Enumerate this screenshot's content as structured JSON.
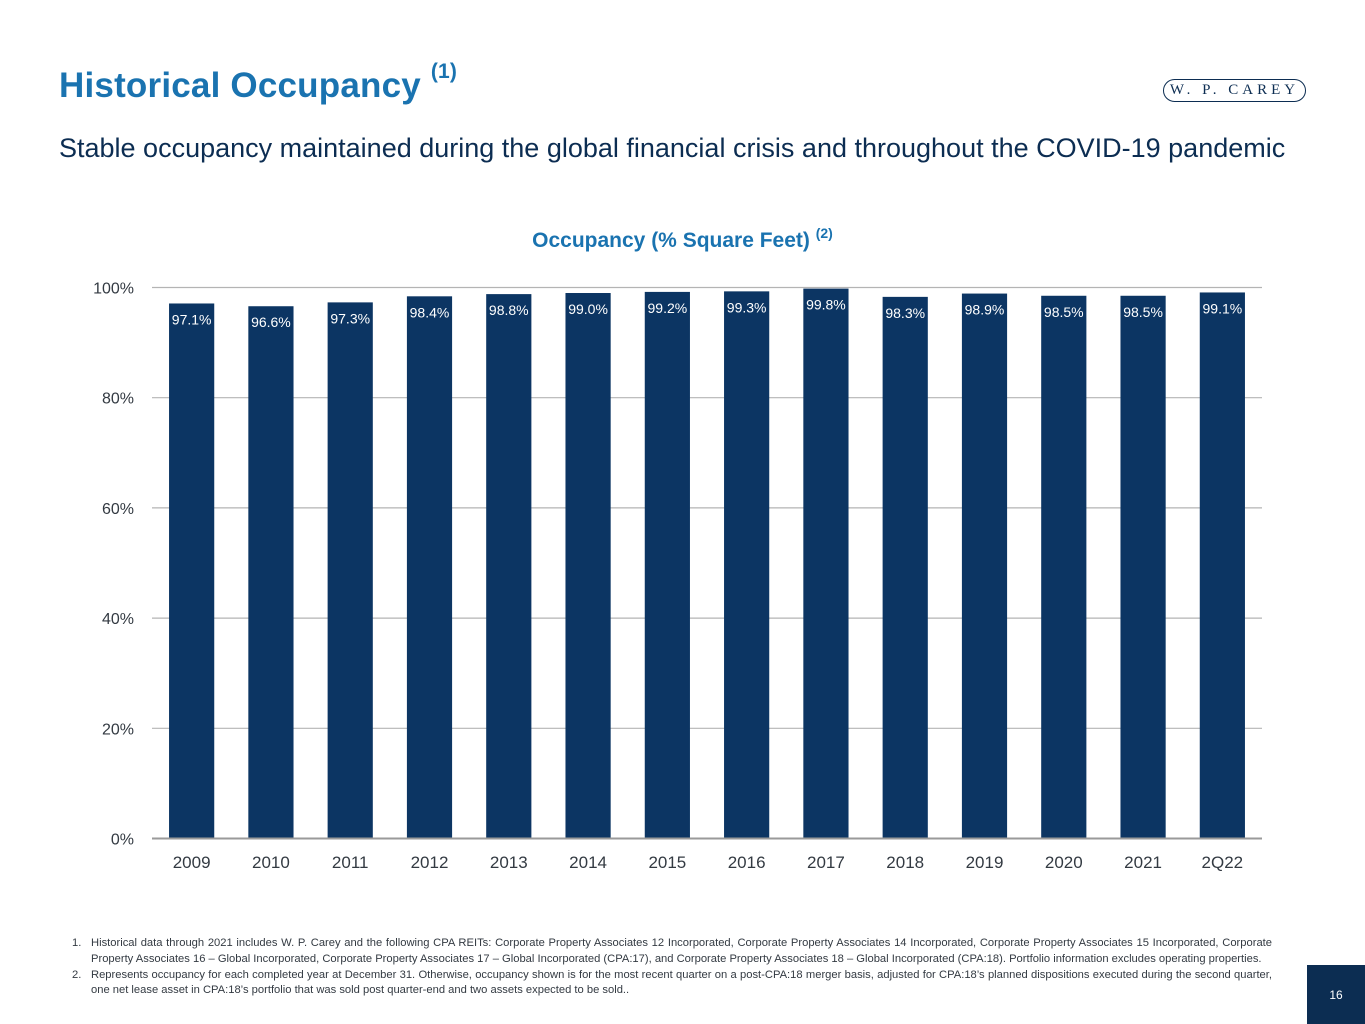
{
  "header": {
    "title": "Historical Occupancy",
    "title_note": "(1)",
    "logo_text": "W. P. CAREY",
    "subtitle": "Stable occupancy maintained during the global financial crisis and throughout the COVID-19 pandemic"
  },
  "chart_title": {
    "text": "Occupancy (% Square Feet)",
    "note": "(2)"
  },
  "chart_data": {
    "type": "bar",
    "title": "Occupancy (% Square Feet) (2)",
    "xlabel": "",
    "ylabel": "",
    "categories": [
      "2009",
      "2010",
      "2011",
      "2012",
      "2013",
      "2014",
      "2015",
      "2016",
      "2017",
      "2018",
      "2019",
      "2020",
      "2021",
      "2Q22"
    ],
    "values": [
      97.1,
      96.6,
      97.3,
      98.4,
      98.8,
      99.0,
      99.2,
      99.3,
      99.8,
      98.3,
      98.9,
      98.5,
      98.5,
      99.1
    ],
    "data_labels": [
      "97.1%",
      "96.6%",
      "97.3%",
      "98.4%",
      "98.8%",
      "99.0%",
      "99.2%",
      "99.3%",
      "99.8%",
      "98.3%",
      "98.9%",
      "98.5%",
      "98.5%",
      "99.1%"
    ],
    "yticks": [
      "0%",
      "20%",
      "40%",
      "60%",
      "80%",
      "100%"
    ],
    "ylim": [
      0,
      100
    ],
    "grid": true,
    "bar_color": "#0c3563"
  },
  "footnotes": [
    {
      "num": "1.",
      "text": "Historical data through 2021 includes W. P. Carey and the following CPA REITs: Corporate Property Associates 12 Incorporated, Corporate Property Associates 14 Incorporated, Corporate Property Associates 15 Incorporated, Corporate Property Associates 16 – Global Incorporated, Corporate Property Associates 17 – Global Incorporated (CPA:17), and Corporate Property Associates 18 – Global Incorporated (CPA:18). Portfolio information excludes operating properties."
    },
    {
      "num": "2.",
      "text": "Represents occupancy for each completed year at December 31. Otherwise, occupancy shown is for the most recent quarter on a post-CPA:18 merger basis, adjusted for CPA:18’s planned dispositions executed during the second quarter, one net lease asset in CPA:18’s portfolio that was sold post quarter-end and two assets expected to be sold.."
    }
  ],
  "page_number": "16",
  "colors": {
    "accent_blue": "#1a73b0",
    "navy": "#0c2d52",
    "bar": "#0c3563"
  }
}
